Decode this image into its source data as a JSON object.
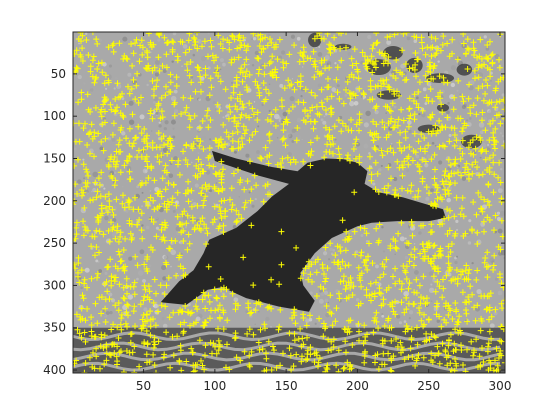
{
  "chart_data": {
    "type": "scatter",
    "title": "",
    "xlabel": "",
    "ylabel": "",
    "background": "grayscale photograph of a silhouetted figure crouching/jumping against a textured wall, with a dark patterned floor band at the bottom",
    "marker": "+",
    "marker_color": "#ffff00",
    "xlim": [
      0.5,
      303.5
    ],
    "ylim": [
      0.5,
      403.5
    ],
    "y_reversed": true,
    "x_ticks": [
      50,
      100,
      150,
      200,
      250,
      300
    ],
    "y_ticks": [
      50,
      100,
      150,
      200,
      250,
      300,
      350,
      400
    ],
    "x_tick_labels": [
      "50",
      "100",
      "150",
      "200",
      "250",
      "300"
    ],
    "y_tick_labels": [
      "50",
      "100",
      "150",
      "200",
      "250",
      "300",
      "350",
      "400"
    ],
    "point_distribution": "dense '+' feature points across the textured wall and floor pattern; sparse inside the dark silhouette",
    "silhouette_outline": [
      [
        98,
        141
      ],
      [
        115,
        150
      ],
      [
        140,
        160
      ],
      [
        158,
        165
      ],
      [
        165,
        155
      ],
      [
        178,
        150
      ],
      [
        190,
        151
      ],
      [
        200,
        155
      ],
      [
        207,
        165
      ],
      [
        205,
        180
      ],
      [
        215,
        190
      ],
      [
        232,
        196
      ],
      [
        250,
        205
      ],
      [
        260,
        210
      ],
      [
        262,
        220
      ],
      [
        250,
        224
      ],
      [
        228,
        224
      ],
      [
        210,
        226
      ],
      [
        200,
        230
      ],
      [
        182,
        244
      ],
      [
        170,
        262
      ],
      [
        160,
        285
      ],
      [
        162,
        300
      ],
      [
        170,
        318
      ],
      [
        166,
        331
      ],
      [
        145,
        325
      ],
      [
        122,
        315
      ],
      [
        105,
        302
      ],
      [
        95,
        305
      ],
      [
        80,
        323
      ],
      [
        62,
        320
      ],
      [
        75,
        295
      ],
      [
        85,
        282
      ],
      [
        92,
        262
      ],
      [
        96,
        246
      ],
      [
        115,
        232
      ],
      [
        130,
        212
      ],
      [
        140,
        195
      ],
      [
        152,
        180
      ],
      [
        130,
        170
      ],
      [
        100,
        153
      ]
    ]
  }
}
